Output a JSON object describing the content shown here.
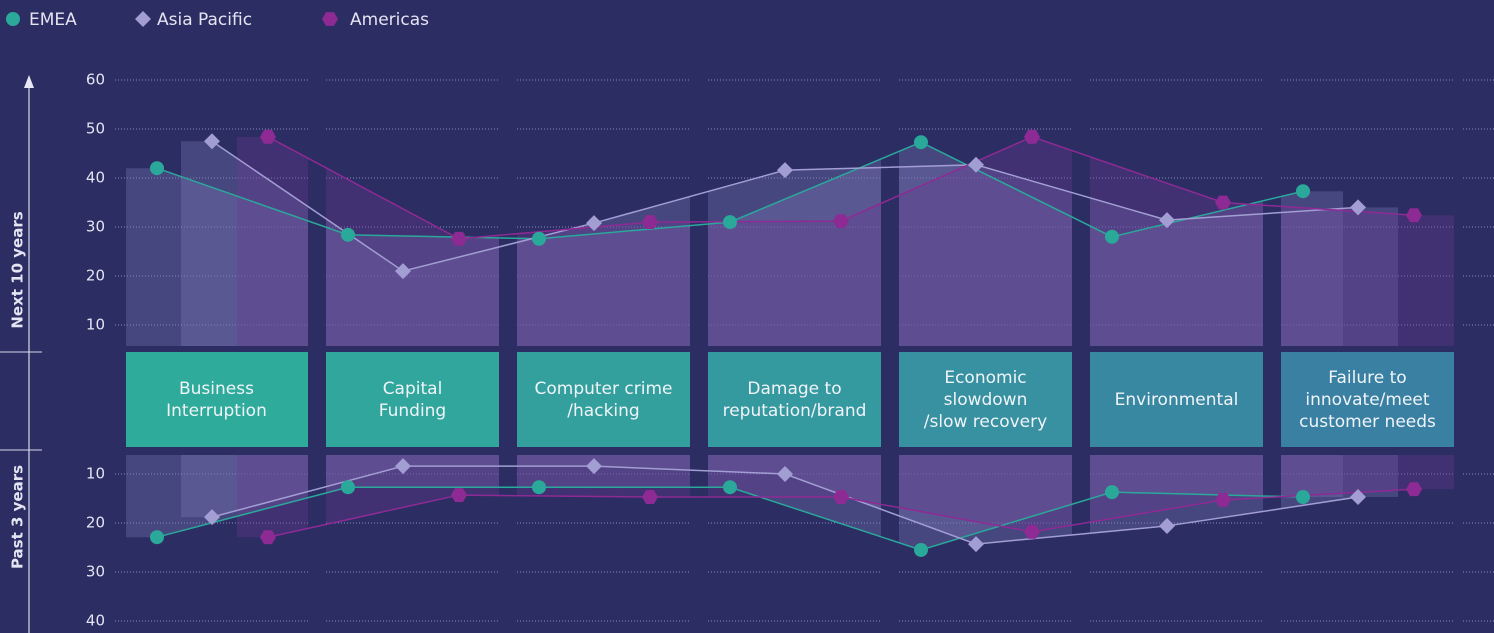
{
  "chart_data": [
    {
      "type": "line",
      "y_axis_label": "Next 10 years",
      "categories": [
        "Business\nInterruption",
        "Capital\nFunding",
        "Computer crime\n/hacking",
        "Damage to\nreputation/brand",
        "Economic\nslowdown\n/slow recovery",
        "Environmental",
        "Failure to\ninnovate/meet\ncustomer needs"
      ],
      "series": [
        {
          "name": "EMEA",
          "color": "#2aa89a",
          "values": [
            42,
            28.4,
            27.6,
            31,
            47.3,
            28,
            37.3
          ]
        },
        {
          "name": "Asia Pacific",
          "color": "#a29ed3",
          "values": [
            47.5,
            21,
            30.8,
            41.6,
            42.7,
            31.4,
            34
          ]
        },
        {
          "name": "Americas",
          "color": "#8e2a94",
          "values": [
            48.4,
            27.6,
            31,
            31.2,
            48.4,
            35,
            32.4
          ]
        }
      ],
      "ylim": [
        0,
        60
      ],
      "yticks": [
        10,
        20,
        30,
        40,
        50,
        60
      ],
      "grid": true
    },
    {
      "type": "line",
      "y_axis_label": "Past 3 years",
      "y_inverted": true,
      "series": [
        {
          "color": "#2aa89a",
          "values": [
            22.9,
            12.7,
            12.7,
            12.7,
            25.5,
            13.7,
            14.7
          ]
        },
        {
          "color": "#a29ed3",
          "values": [
            18.8,
            8.4,
            8.4,
            10,
            24.3,
            20.6,
            14.7
          ]
        },
        {
          "color": "#8e2a94",
          "values": [
            22.9,
            14.3,
            14.7,
            14.7,
            21.8,
            15.3,
            13.1
          ]
        }
      ],
      "ylim": [
        0,
        40
      ],
      "yticks": [
        10,
        20,
        30,
        40
      ],
      "grid": true
    }
  ]
}
